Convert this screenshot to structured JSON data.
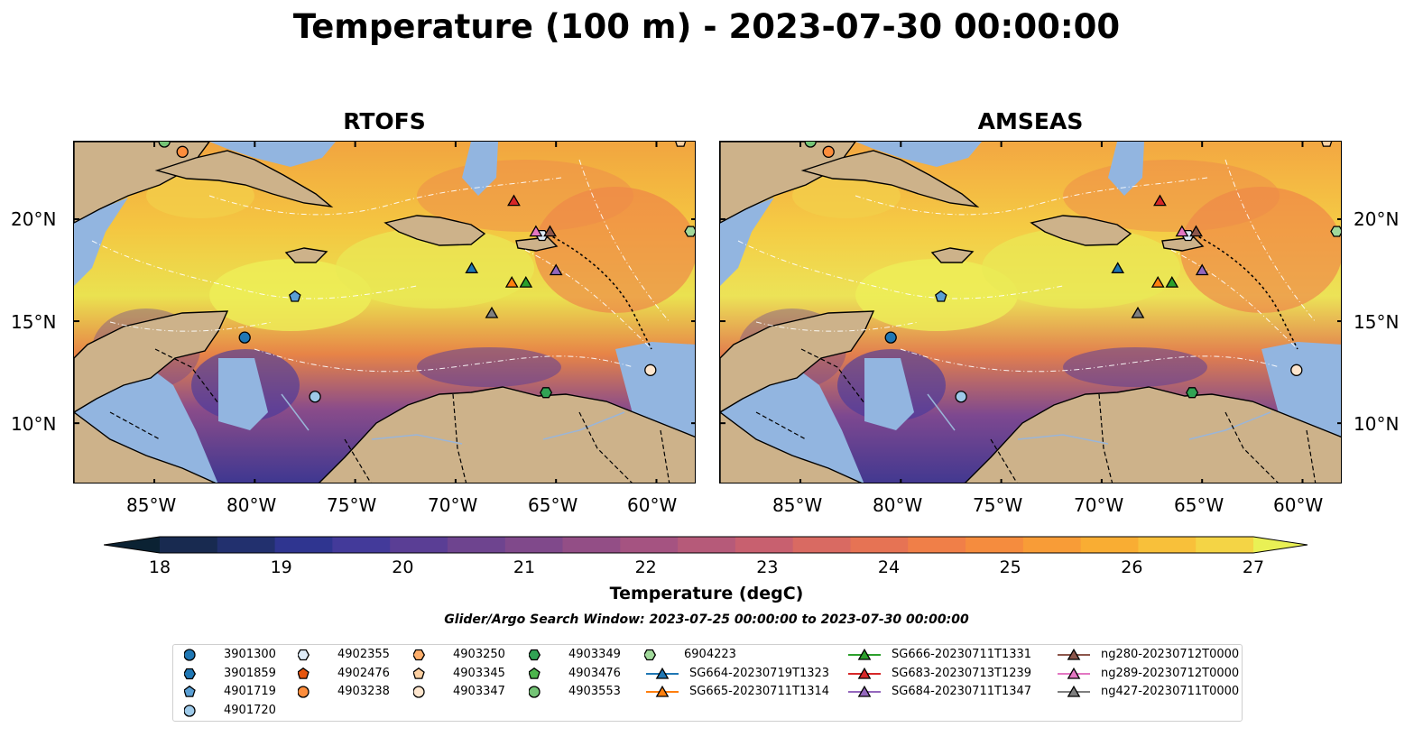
{
  "title": "Temperature (100 m) - 2023-07-30 00:00:00",
  "panels": [
    {
      "id": "rtofs",
      "title": "RTOFS"
    },
    {
      "id": "amseas",
      "title": "AMSEAS"
    }
  ],
  "axes": {
    "lon_ticks": [
      "85°W",
      "80°W",
      "75°W",
      "70°W",
      "65°W",
      "60°W"
    ],
    "lat_ticks": [
      "20°N",
      "15°N",
      "10°N"
    ]
  },
  "colorbar": {
    "label": "Temperature (degC)",
    "ticks": [
      "18",
      "19",
      "20",
      "21",
      "22",
      "23",
      "24",
      "25",
      "26",
      "27"
    ],
    "colors": [
      "#0b2233",
      "#182a50",
      "#22306e",
      "#2f3590",
      "#433a9a",
      "#5a3e95",
      "#6e448f",
      "#80498b",
      "#934e86",
      "#a55381",
      "#b65a79",
      "#c8606f",
      "#d96a62",
      "#e67354",
      "#f07f48",
      "#f58c3e",
      "#f89c37",
      "#f9ad33",
      "#f8c03a",
      "#f4d445",
      "#e9f055"
    ]
  },
  "search_window": "Glider/Argo Search Window: 2023-07-25 00:00:00 to 2023-07-30 00:00:00",
  "legend": [
    {
      "label": "3901300",
      "marker": "circle",
      "color": "#1f77b4",
      "line": false
    },
    {
      "label": "3901859",
      "marker": "hexagon",
      "color": "#1f77b4",
      "line": false
    },
    {
      "label": "4901719",
      "marker": "pentagon",
      "color": "#5a9fd4",
      "line": false
    },
    {
      "label": "4901720",
      "marker": "circle",
      "color": "#9ecae9",
      "line": false
    },
    {
      "label": "4902355",
      "marker": "hexagon",
      "color": "#deebf7",
      "line": false
    },
    {
      "label": "4902476",
      "marker": "pentagon",
      "color": "#e6550d",
      "line": false
    },
    {
      "label": "4903238",
      "marker": "circle",
      "color": "#fd8d3c",
      "line": false
    },
    {
      "label": "4903250",
      "marker": "hexagon",
      "color": "#fdae6b",
      "line": false
    },
    {
      "label": "4903345",
      "marker": "pentagon",
      "color": "#fdd0a2",
      "line": false
    },
    {
      "label": "4903347",
      "marker": "circle",
      "color": "#fee6ce",
      "line": false
    },
    {
      "label": "4903349",
      "marker": "hexagon",
      "color": "#31a354",
      "line": false
    },
    {
      "label": "4903476",
      "marker": "pentagon",
      "color": "#4cb54c",
      "line": false
    },
    {
      "label": "4903553",
      "marker": "circle",
      "color": "#74c476",
      "line": false
    },
    {
      "label": "6904223",
      "marker": "hexagon",
      "color": "#a1d99b",
      "line": false
    },
    {
      "label": "SG664-20230719T1323",
      "marker": "triangle",
      "color": "#1f77b4",
      "line": true
    },
    {
      "label": "SG665-20230711T1314",
      "marker": "triangle",
      "color": "#ff7f0e",
      "line": true
    },
    {
      "label": "SG666-20230711T1331",
      "marker": "triangle",
      "color": "#2ca02c",
      "line": true
    },
    {
      "label": "SG683-20230713T1239",
      "marker": "triangle",
      "color": "#d62728",
      "line": true
    },
    {
      "label": "SG684-20230711T1347",
      "marker": "triangle",
      "color": "#9467bd",
      "line": true
    },
    {
      "label": "ng280-20230712T0000",
      "marker": "triangle",
      "color": "#8c564b",
      "line": true
    },
    {
      "label": "ng289-20230712T0000",
      "marker": "triangle",
      "color": "#e377c2",
      "line": true
    },
    {
      "label": "ng427-20230711T0000",
      "marker": "triangle",
      "color": "#7f7f7f",
      "line": true
    }
  ],
  "observations": [
    {
      "label": "3901300",
      "lon": -80.5,
      "lat": 14.2
    },
    {
      "label": "4901719",
      "lon": -78.0,
      "lat": 16.2
    },
    {
      "label": "4901720",
      "lon": -77.0,
      "lat": 11.3
    },
    {
      "label": "4902355",
      "lon": -65.7,
      "lat": 19.2
    },
    {
      "label": "4903238",
      "lon": -83.6,
      "lat": 23.3
    },
    {
      "label": "4903345",
      "lon": -58.8,
      "lat": 23.8
    },
    {
      "label": "4903347",
      "lon": -60.3,
      "lat": 12.6
    },
    {
      "label": "4903349",
      "lon": -65.5,
      "lat": 11.5
    },
    {
      "label": "4903553",
      "lon": -84.5,
      "lat": 23.8
    },
    {
      "label": "6904223",
      "lon": -58.3,
      "lat": 19.4
    },
    {
      "label": "SG664-20230719T1323",
      "lon": -69.2,
      "lat": 17.6
    },
    {
      "label": "SG665-20230711T1314",
      "lon": -67.2,
      "lat": 16.9
    },
    {
      "label": "SG666-20230711T1331",
      "lon": -66.5,
      "lat": 16.9
    },
    {
      "label": "SG683-20230713T1239",
      "lon": -67.1,
      "lat": 20.9
    },
    {
      "label": "SG684-20230711T1347",
      "lon": -65.0,
      "lat": 17.5
    },
    {
      "label": "ng280-20230712T0000",
      "lon": -65.3,
      "lat": 19.4
    },
    {
      "label": "ng289-20230712T0000",
      "lon": -66.0,
      "lat": 19.4
    },
    {
      "label": "ng427-20230711T0000",
      "lon": -68.2,
      "lat": 15.4
    }
  ]
}
